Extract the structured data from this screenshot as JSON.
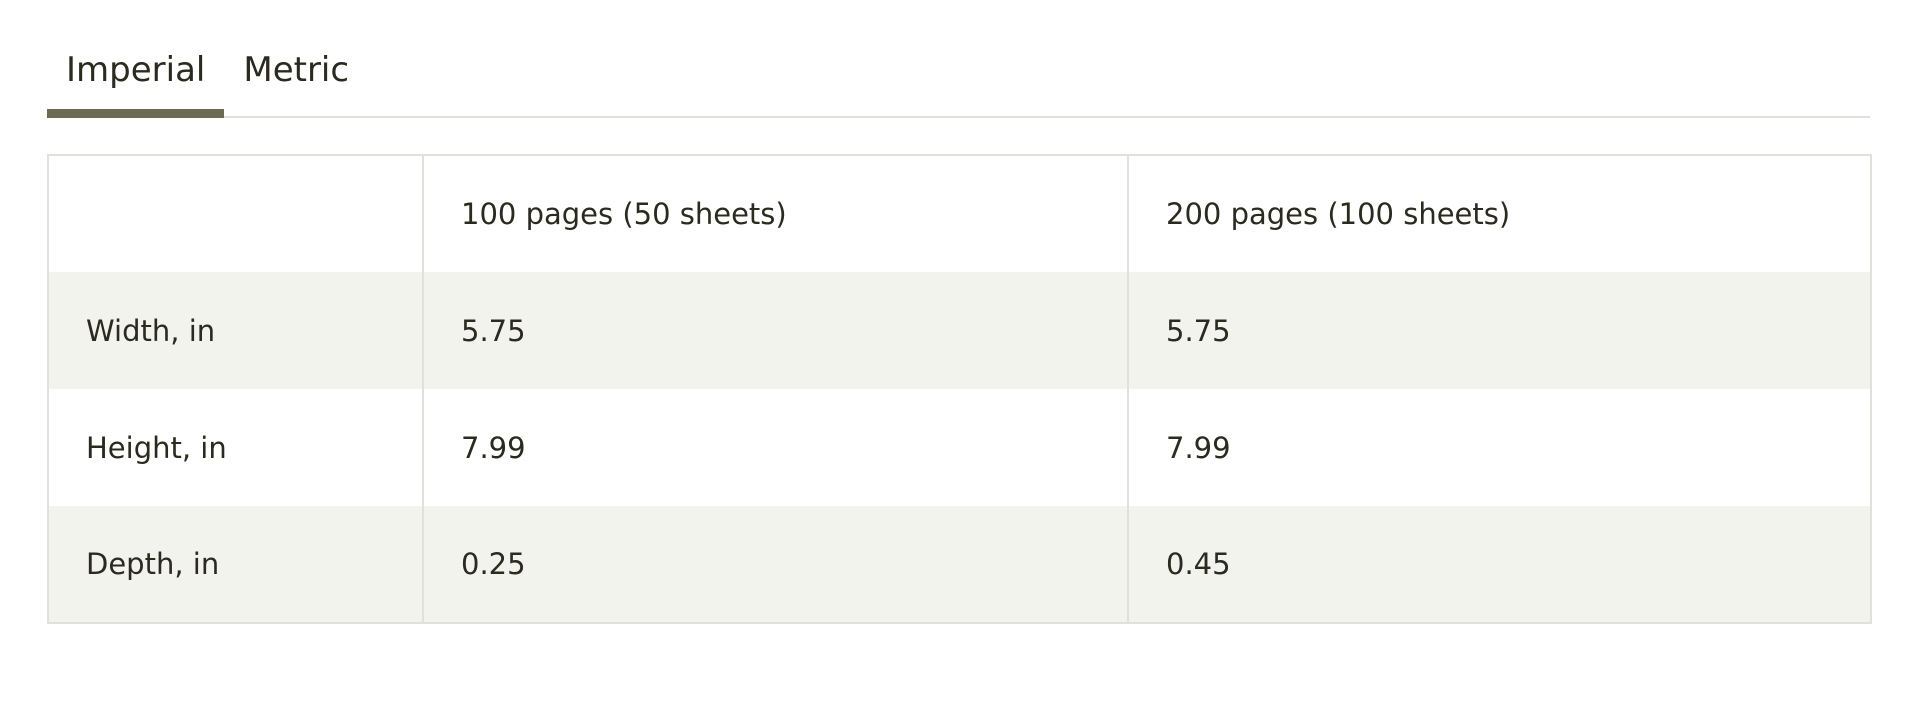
{
  "tabs": [
    {
      "label": "Imperial",
      "active": true
    },
    {
      "label": "Metric",
      "active": false
    }
  ],
  "table": {
    "headers": [
      "",
      "100 pages (50 sheets)",
      "200 pages (100 sheets)"
    ],
    "rows": [
      {
        "label": "Width, in",
        "values": [
          "5.75",
          "5.75"
        ]
      },
      {
        "label": "Height, in",
        "values": [
          "7.99",
          "7.99"
        ]
      },
      {
        "label": "Depth, in",
        "values": [
          "0.25",
          "0.45"
        ]
      }
    ]
  },
  "colors": {
    "text": "#2b2a1f",
    "accent": "#6b6c52",
    "stripe": "#f3f3ee",
    "border": "#e0e0dc"
  }
}
